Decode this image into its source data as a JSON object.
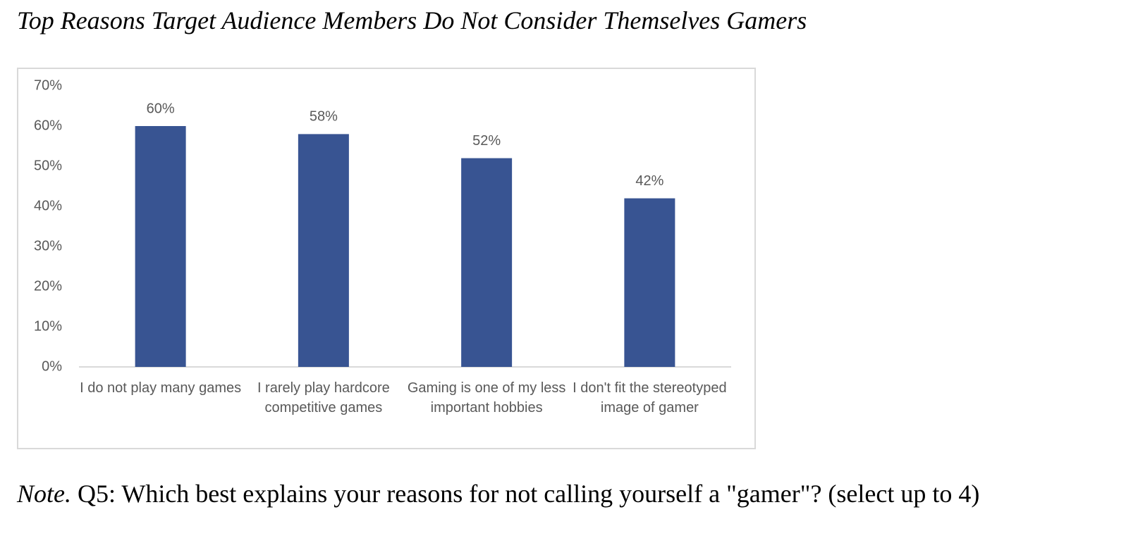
{
  "chart_data": {
    "type": "bar",
    "title": "Top Reasons Target Audience Members Do Not Consider Themselves Gamers",
    "categories": [
      "I do not play many games",
      "I rarely play hardcore competitive games",
      "Gaming is one of my less important hobbies",
      "I don't fit the stereotyped image of gamer"
    ],
    "values": [
      60,
      58,
      52,
      42
    ],
    "value_labels": [
      "60%",
      "58%",
      "52%",
      "42%"
    ],
    "color": "#385492",
    "ylim": [
      0,
      70
    ],
    "yticks": [
      {
        "value": 0,
        "label": "0%"
      },
      {
        "value": 10,
        "label": "10%"
      },
      {
        "value": 20,
        "label": "20%"
      },
      {
        "value": 30,
        "label": "30%"
      },
      {
        "value": 40,
        "label": "40%"
      },
      {
        "value": 50,
        "label": "50%"
      },
      {
        "value": 60,
        "label": "60%"
      },
      {
        "value": 70,
        "label": "70%"
      }
    ],
    "grid": false,
    "note_label": "Note.",
    "note": "Q5: Which best explains your reasons for not calling yourself a \"gamer\"? (select up to 4)"
  }
}
